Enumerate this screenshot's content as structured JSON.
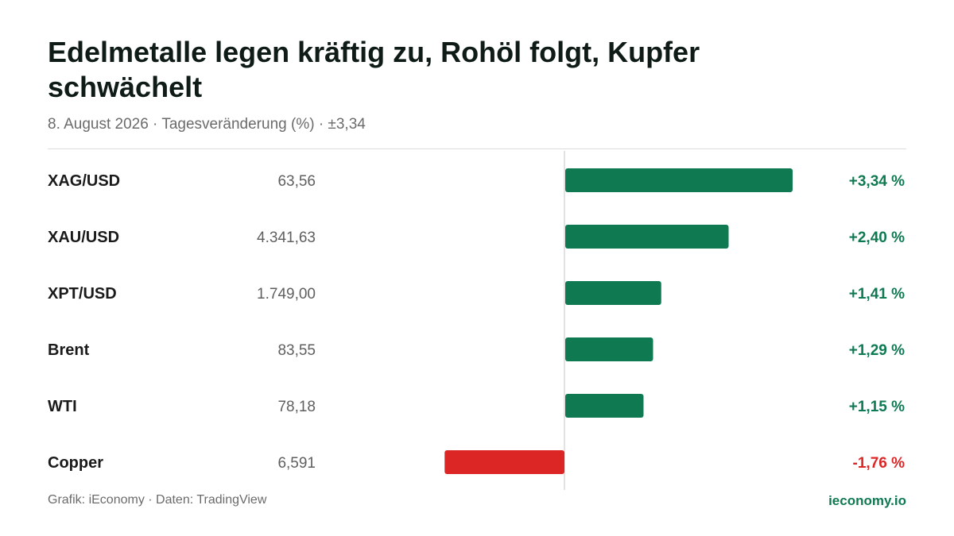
{
  "header": {
    "title": "Edelmetalle legen kräftig zu, Rohöl folgt, Kupfer schwächelt",
    "subtitle": "8. August 2026 · Tagesveränderung (%) · ±3,34"
  },
  "footer": {
    "source": "Grafik: iEconomy · Daten: TradingView",
    "brand": "ieconomy.io"
  },
  "colors": {
    "positive": "#0f7a52",
    "negative": "#dc2626",
    "label": "#1a1a1a",
    "value": "#5f5f5f",
    "zero_line": "#d8d8d8"
  },
  "chart_data": {
    "type": "bar",
    "orientation": "horizontal",
    "unit": "%",
    "xlim": [
      -3.34,
      3.34
    ],
    "categories": [
      "XAG/USD",
      "XAU/USD",
      "XPT/USD",
      "Brent",
      "WTI",
      "Copper"
    ],
    "prices": [
      "63,56",
      "4.341,63",
      "1.749,00",
      "83,55",
      "78,18",
      "6,591"
    ],
    "values": [
      3.34,
      2.4,
      1.41,
      1.29,
      1.15,
      -1.76
    ],
    "value_labels": [
      "+3,34 %",
      "+2,40 %",
      "+1,41 %",
      "+1,29 %",
      "+1,15 %",
      "-1,76 %"
    ]
  }
}
